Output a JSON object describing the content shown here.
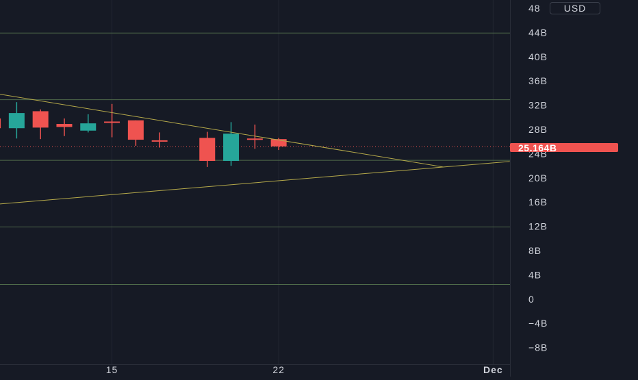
{
  "colors": {
    "background": "#161a25",
    "grid": "#232733",
    "up": "#26a69a",
    "down": "#ef5350",
    "horizontal_level": "#4f6b4a",
    "trendline": "#b5a94a",
    "axis_text": "#d1d4dc",
    "axis_border": "#2a2e39"
  },
  "currency_selector": {
    "label": "USD"
  },
  "last_price": {
    "label": "25.164B",
    "value": 25.164
  },
  "chart_data": {
    "type": "candlestick",
    "y_unit": "B",
    "ylim": [
      -10.5,
      49
    ],
    "y_ticks": [
      {
        "value": 48,
        "label": "48"
      },
      {
        "value": 44,
        "label": "44B"
      },
      {
        "value": 40,
        "label": "40B"
      },
      {
        "value": 36,
        "label": "36B"
      },
      {
        "value": 32,
        "label": "32B"
      },
      {
        "value": 28,
        "label": "28B"
      },
      {
        "value": 24,
        "label": "24B"
      },
      {
        "value": 20,
        "label": "20B"
      },
      {
        "value": 16,
        "label": "16B"
      },
      {
        "value": 12,
        "label": "12B"
      },
      {
        "value": 8,
        "label": "8B"
      },
      {
        "value": 4,
        "label": "4B"
      },
      {
        "value": 0,
        "label": "0"
      },
      {
        "value": -4,
        "label": "−4B"
      },
      {
        "value": -8,
        "label": "−8B"
      }
    ],
    "x_ticks": [
      {
        "day": 15,
        "label": "15"
      },
      {
        "day": 22,
        "label": "22"
      },
      {
        "day": 31,
        "label": "Dec"
      }
    ],
    "xlim": [
      10.3,
      31.7
    ],
    "candles": [
      {
        "day": 10,
        "open": 29.8,
        "high": 31.0,
        "low": 27.0,
        "close": 28.2
      },
      {
        "day": 11,
        "open": 28.2,
        "high": 32.5,
        "low": 26.5,
        "close": 30.7
      },
      {
        "day": 12,
        "open": 31.0,
        "high": 31.3,
        "low": 26.4,
        "close": 28.3
      },
      {
        "day": 13,
        "open": 28.9,
        "high": 29.8,
        "low": 26.9,
        "close": 28.4
      },
      {
        "day": 14,
        "open": 27.8,
        "high": 30.5,
        "low": 27.5,
        "close": 29.0
      },
      {
        "day": 15,
        "open": 29.3,
        "high": 32.2,
        "low": 26.7,
        "close": 29.3
      },
      {
        "day": 16,
        "open": 29.5,
        "high": 29.5,
        "low": 25.3,
        "close": 26.3
      },
      {
        "day": 17,
        "open": 26.2,
        "high": 27.5,
        "low": 25.0,
        "close": 26.2
      },
      {
        "day": 19,
        "open": 26.6,
        "high": 27.6,
        "low": 21.8,
        "close": 22.8
      },
      {
        "day": 20,
        "open": 22.8,
        "high": 29.2,
        "low": 22.0,
        "close": 27.3
      },
      {
        "day": 21,
        "open": 26.5,
        "high": 28.8,
        "low": 24.8,
        "close": 26.5
      },
      {
        "day": 22,
        "open": 26.4,
        "high": 26.6,
        "low": 24.6,
        "close": 25.2
      }
    ],
    "horizontal_levels": [
      43.9,
      32.9,
      22.9,
      11.9,
      2.4
    ],
    "trendlines": [
      {
        "from": {
          "day": 10.3,
          "value": 33.8
        },
        "to": {
          "day": 28.9,
          "value": 21.8
        }
      },
      {
        "from": {
          "day": 10.3,
          "value": 15.7
        },
        "to": {
          "day": 31.7,
          "value": 22.7
        }
      }
    ],
    "last_price_line": 25.164,
    "grid": true
  }
}
